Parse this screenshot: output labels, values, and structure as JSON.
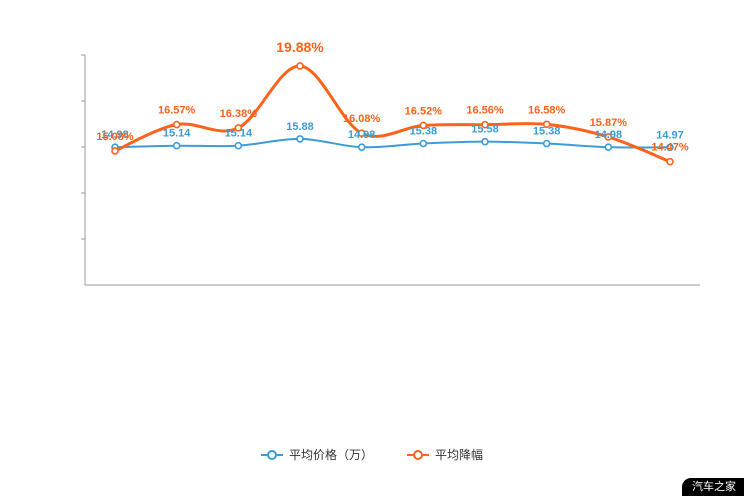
{
  "watermark_text": "汽车之家",
  "legend": {
    "items": [
      {
        "label": "平均价格（万）",
        "color": "#3b9cd9"
      },
      {
        "label": "平均降幅",
        "color": "#ff6219"
      }
    ]
  },
  "chart_data": {
    "type": "line",
    "title": "",
    "xlabel": "",
    "ylabel": "",
    "grid": false,
    "legend_position": "bottom",
    "price_axis_range": [
      0,
      25
    ],
    "percent_axis_range": [
      7.5,
      20.5
    ],
    "series": [
      {
        "name": "平均价格（万）",
        "axis": "price",
        "color": "#3b9cd9",
        "values": [
          14.98,
          15.14,
          15.14,
          15.88,
          14.98,
          15.38,
          15.58,
          15.38,
          14.98,
          14.97
        ],
        "labels": [
          "14.98",
          "15.14",
          "15.14",
          "15.88",
          "14.98",
          "15.38",
          "15.58",
          "15.38",
          "14.98",
          "14.97"
        ]
      },
      {
        "name": "平均降幅",
        "axis": "percent",
        "color": "#ff6219",
        "values": [
          15.08,
          16.57,
          16.38,
          19.88,
          16.08,
          16.52,
          16.56,
          16.58,
          15.87,
          14.47
        ],
        "labels": [
          "15.08%",
          "16.57%",
          "16.38%",
          "19.88%",
          "16.08%",
          "16.52%",
          "16.56%",
          "16.58%",
          "15.87%",
          "14.47%"
        ]
      }
    ]
  }
}
